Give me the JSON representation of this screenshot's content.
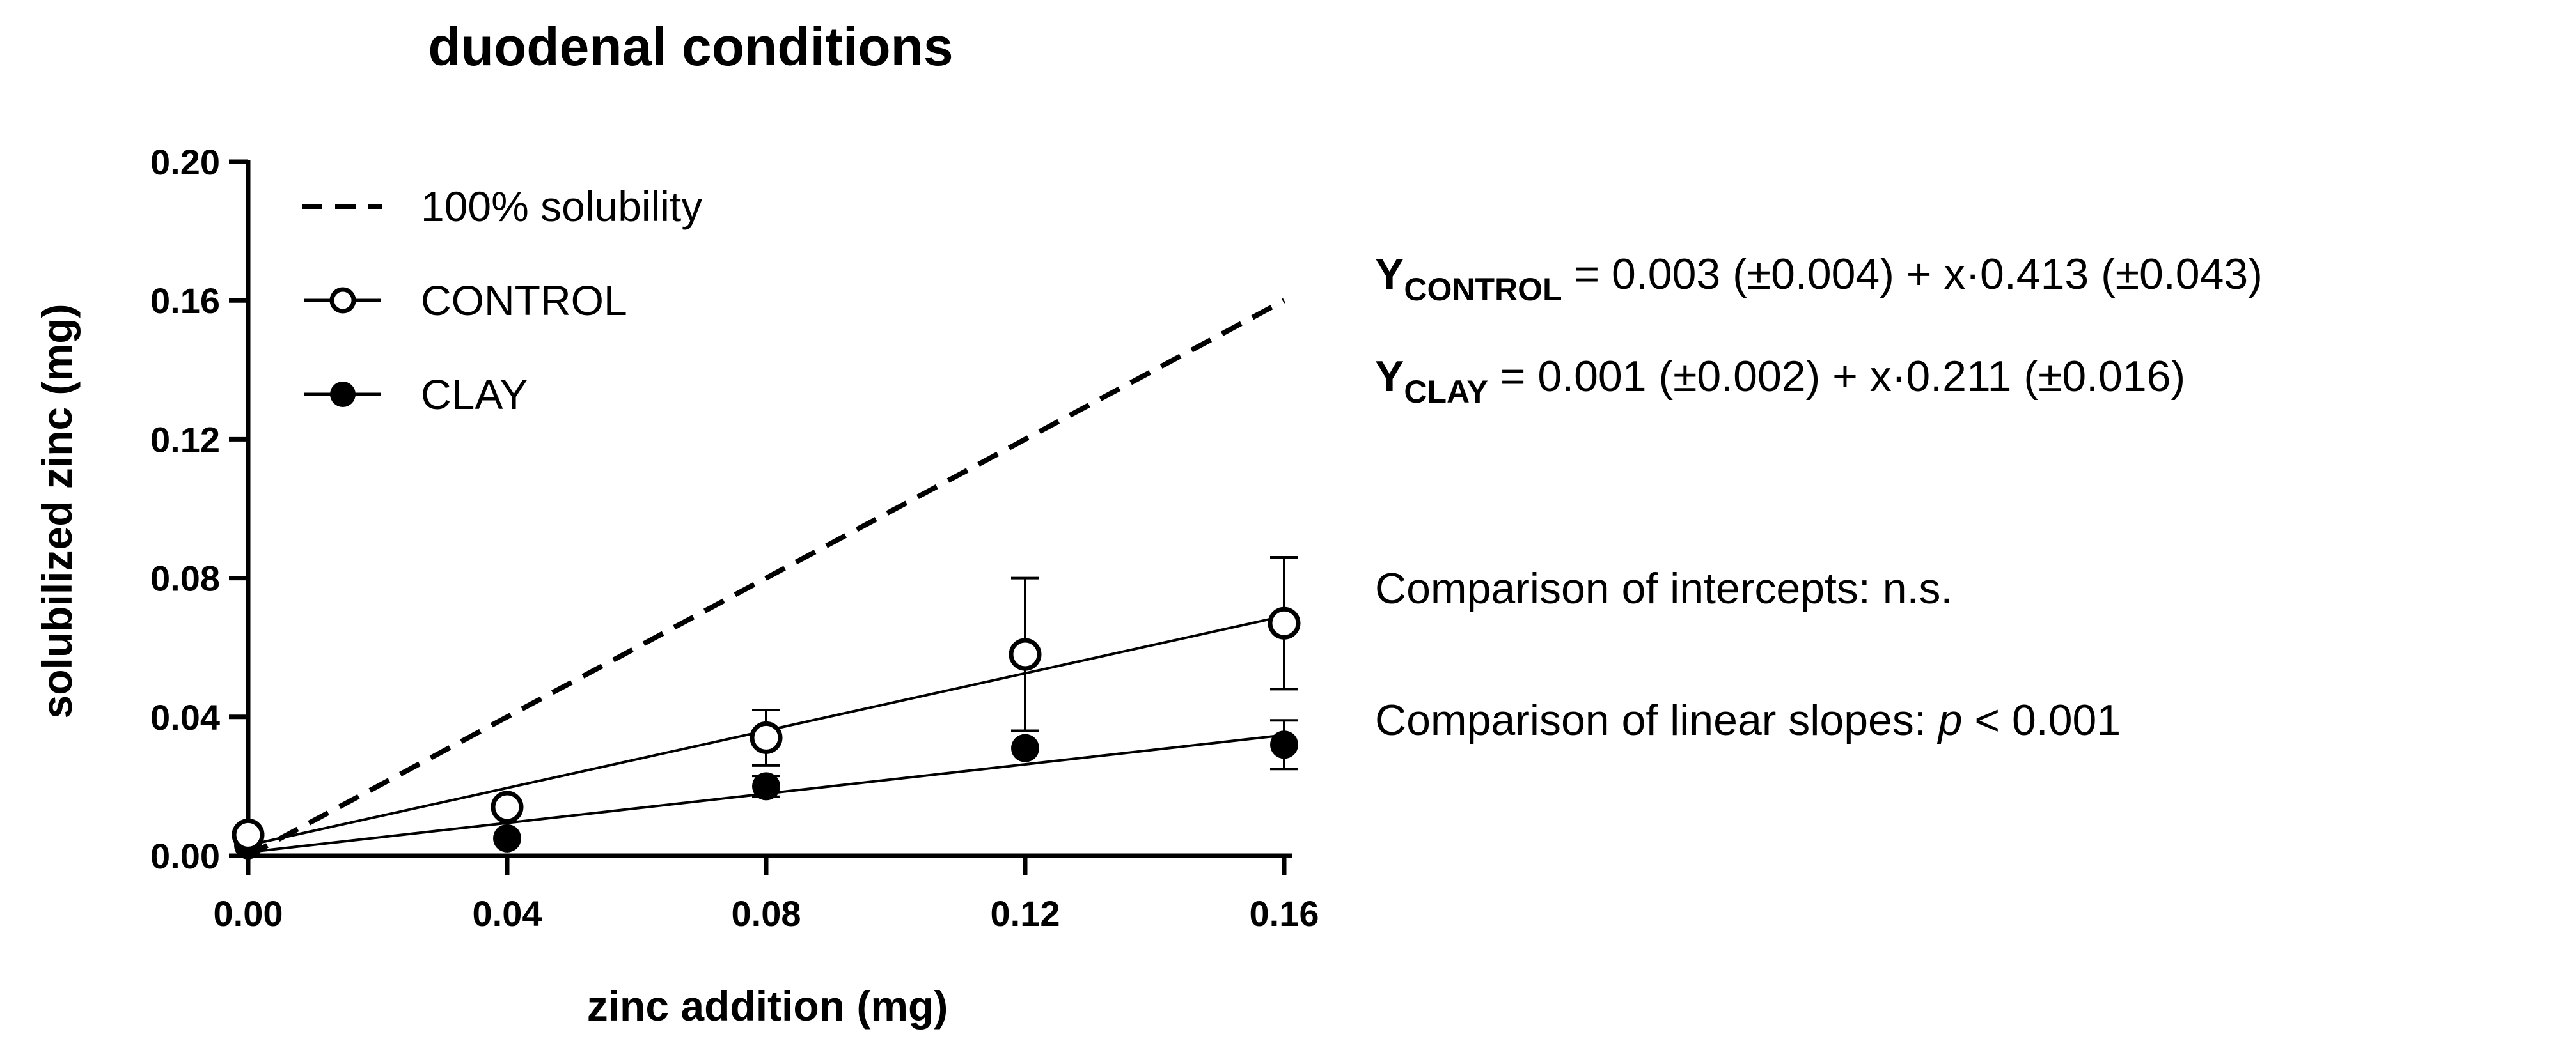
{
  "colors": {
    "ink": "#000000",
    "background": "#ffffff"
  },
  "chart_data": {
    "type": "scatter",
    "title": "duodenal conditions",
    "xlabel": "zinc addition (mg)",
    "ylabel": "solubilized zinc (mg)",
    "xlim": [
      0,
      0.16
    ],
    "ylim": [
      0,
      0.2
    ],
    "x_ticks": [
      0,
      0.04,
      0.08,
      0.12,
      0.16
    ],
    "x_tick_labels": [
      "0.00",
      "0.04",
      "0.08",
      "0.12",
      "0.16"
    ],
    "y_ticks": [
      0,
      0.04,
      0.08,
      0.12,
      0.16,
      0.2
    ],
    "y_tick_labels": [
      "0.00",
      "0.04",
      "0.08",
      "0.12",
      "0.16",
      "0.20"
    ],
    "grid": false,
    "legend_position": "top-left",
    "reference_line": {
      "name": "100% solubility",
      "style": "dashed",
      "x": [
        0,
        0.16
      ],
      "y": [
        0,
        0.16
      ]
    },
    "series": [
      {
        "name": "CONTROL",
        "marker": "open-circle",
        "x": [
          0,
          0.04,
          0.08,
          0.12,
          0.16
        ],
        "y": [
          0.006,
          0.014,
          0.034,
          0.058,
          0.067
        ],
        "error": [
          null,
          null,
          0.008,
          0.022,
          0.019
        ],
        "fit": {
          "intercept": 0.003,
          "slope": 0.413
        }
      },
      {
        "name": "CLAY",
        "marker": "filled-circle",
        "x": [
          0,
          0.04,
          0.08,
          0.12,
          0.16
        ],
        "y": [
          0.003,
          0.005,
          0.02,
          0.031,
          0.032
        ],
        "error": [
          null,
          null,
          0.003,
          null,
          0.007
        ],
        "fit": {
          "intercept": 0.001,
          "slope": 0.211
        }
      }
    ]
  },
  "equations": {
    "control": {
      "y": "Y",
      "sub": "CONTROL",
      "rest": " = 0.003 (±0.004) + x·0.413 (±0.043)"
    },
    "clay": {
      "y": "Y",
      "sub": "CLAY",
      "rest": " = 0.001 (±0.002) + x·0.211 (±0.016)"
    }
  },
  "comparisons": {
    "intercepts": "Comparison of intercepts: n.s.",
    "slopes_prefix": "Comparison of linear slopes: ",
    "slopes_p": "p",
    "slopes_suffix": " < 0.001"
  }
}
